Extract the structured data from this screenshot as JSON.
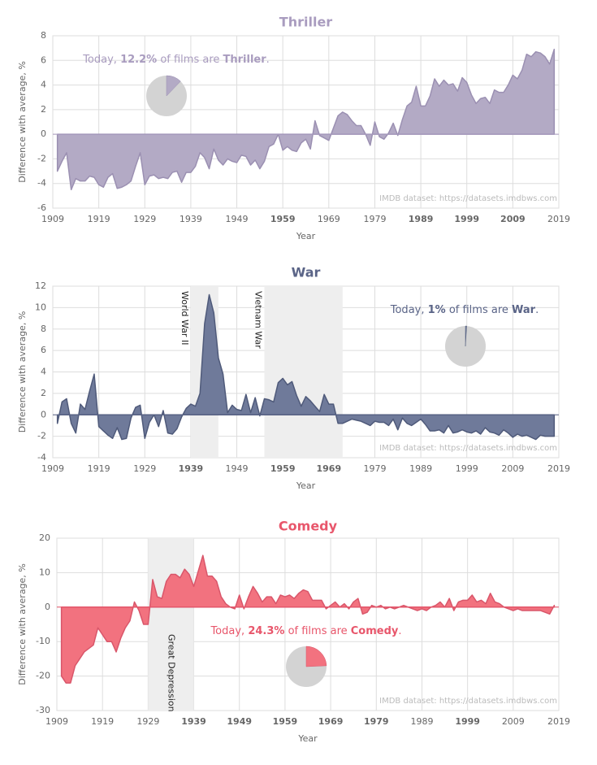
{
  "chart_data": [
    {
      "type": "area",
      "title": "Thriller",
      "color": "#b3aac5",
      "line_color": "#9b90b2",
      "title_color": "#a99cbf",
      "xlabel": "Year",
      "ylabel": "Difference with average, %",
      "source": "IMDB dataset: https://datasets.imdbws.com",
      "xlim": [
        1909,
        2019
      ],
      "xticks": [
        1909,
        1919,
        1929,
        1939,
        1949,
        1959,
        1969,
        1979,
        1989,
        1999,
        2009,
        2019
      ],
      "bold_xticks": [
        1959,
        1989,
        1999,
        2009
      ],
      "ylim": [
        -6,
        8
      ],
      "yticks": [
        -6,
        -4,
        -2,
        0,
        2,
        4,
        6,
        8
      ],
      "grid": true,
      "annotation": {
        "prefix": "Today, ",
        "share": {
          "value": 12.2,
          "label": "12.2%"
        },
        "middle": " of films are ",
        "genre": "Thriller",
        "suffix": "."
      },
      "bands": [],
      "x": [
        1910,
        1911,
        1912,
        1913,
        1914,
        1915,
        1916,
        1917,
        1918,
        1919,
        1920,
        1921,
        1922,
        1923,
        1924,
        1925,
        1926,
        1927,
        1928,
        1929,
        1930,
        1931,
        1932,
        1933,
        1934,
        1935,
        1936,
        1937,
        1938,
        1939,
        1940,
        1941,
        1942,
        1943,
        1944,
        1945,
        1946,
        1947,
        1948,
        1949,
        1950,
        1951,
        1952,
        1953,
        1954,
        1955,
        1956,
        1957,
        1958,
        1959,
        1960,
        1961,
        1962,
        1963,
        1964,
        1965,
        1966,
        1967,
        1968,
        1969,
        1970,
        1971,
        1972,
        1973,
        1974,
        1975,
        1976,
        1977,
        1978,
        1979,
        1980,
        1981,
        1982,
        1983,
        1984,
        1985,
        1986,
        1987,
        1988,
        1989,
        1990,
        1991,
        1992,
        1993,
        1994,
        1995,
        1996,
        1997,
        1998,
        1999,
        2000,
        2001,
        2002,
        2003,
        2004,
        2005,
        2006,
        2007,
        2008,
        2009,
        2010,
        2011,
        2012,
        2013,
        2014,
        2015,
        2016,
        2017,
        2018
      ],
      "values": [
        -3,
        -2.2,
        -1.5,
        -4.5,
        -3.6,
        -3.8,
        -3.8,
        -3.4,
        -3.5,
        -4.1,
        -4.3,
        -3.5,
        -3.2,
        -4.4,
        -4.3,
        -4.1,
        -3.8,
        -2.6,
        -1.5,
        -4.1,
        -3.4,
        -3.3,
        -3.6,
        -3.5,
        -3.6,
        -3.1,
        -3,
        -3.9,
        -3.1,
        -3.1,
        -2.6,
        -1.5,
        -1.9,
        -2.8,
        -1.2,
        -2.1,
        -2.5,
        -2,
        -2.2,
        -2.3,
        -1.7,
        -1.8,
        -2.5,
        -2.1,
        -2.8,
        -2.2,
        -1,
        -0.8,
        0,
        -1.3,
        -1,
        -1.3,
        -1.4,
        -0.7,
        -0.4,
        -1.2,
        1.1,
        -0.1,
        -0.3,
        -0.5,
        0.5,
        1.5,
        1.8,
        1.6,
        1.1,
        0.7,
        0.7,
        0,
        -0.9,
        1,
        -0.2,
        -0.4,
        0.1,
        0.9,
        -0.1,
        1.2,
        2.3,
        2.6,
        3.9,
        2.3,
        2.3,
        3.1,
        4.5,
        3.9,
        4.4,
        4,
        4.1,
        3.5,
        4.6,
        4.2,
        3.2,
        2.5,
        2.9,
        3,
        2.5,
        3.6,
        3.4,
        3.4,
        4,
        4.8,
        4.5,
        5.2,
        6.5,
        6.3,
        6.7,
        6.6,
        6.3,
        5.7,
        6.9
      ]
    },
    {
      "type": "area",
      "title": "War",
      "color": "#6f7a9a",
      "line_color": "#4f5a7a",
      "title_color": "#5a6487",
      "xlabel": "Year",
      "ylabel": "Difference with average, %",
      "source": "IMDB dataset: https://datasets.imdbws.com",
      "xlim": [
        1909,
        2019
      ],
      "xticks": [
        1909,
        1919,
        1929,
        1939,
        1949,
        1959,
        1969,
        1979,
        1989,
        1999,
        2009,
        2019
      ],
      "bold_xticks": [
        1939,
        1959,
        1969
      ],
      "ylim": [
        -4,
        12
      ],
      "yticks": [
        -4,
        -2,
        0,
        2,
        4,
        6,
        8,
        10,
        12
      ],
      "grid": true,
      "annotation": {
        "prefix": "Today, ",
        "share": {
          "value": 1,
          "label": "1%"
        },
        "middle": " of films are ",
        "genre": "War",
        "suffix": "."
      },
      "bands": [
        {
          "label": "World War II",
          "range": [
            1939,
            1945
          ]
        },
        {
          "label": "Vietnam War",
          "range": [
            1955,
            1972
          ]
        }
      ],
      "x": [
        1910,
        1911,
        1912,
        1913,
        1914,
        1915,
        1916,
        1917,
        1918,
        1919,
        1920,
        1921,
        1922,
        1923,
        1924,
        1925,
        1926,
        1927,
        1928,
        1929,
        1930,
        1931,
        1932,
        1933,
        1934,
        1935,
        1936,
        1937,
        1938,
        1939,
        1940,
        1941,
        1942,
        1943,
        1944,
        1945,
        1946,
        1947,
        1948,
        1949,
        1950,
        1951,
        1952,
        1953,
        1954,
        1955,
        1956,
        1957,
        1958,
        1959,
        1960,
        1961,
        1962,
        1963,
        1964,
        1965,
        1966,
        1967,
        1968,
        1969,
        1970,
        1971,
        1972,
        1973,
        1974,
        1975,
        1976,
        1977,
        1978,
        1979,
        1980,
        1981,
        1982,
        1983,
        1984,
        1985,
        1986,
        1987,
        1988,
        1989,
        1990,
        1991,
        1992,
        1993,
        1994,
        1995,
        1996,
        1997,
        1998,
        1999,
        2000,
        2001,
        2002,
        2003,
        2004,
        2005,
        2006,
        2007,
        2008,
        2009,
        2010,
        2011,
        2012,
        2013,
        2014,
        2015,
        2016,
        2017,
        2018
      ],
      "values": [
        -0.8,
        1.2,
        1.5,
        -0.8,
        -1.7,
        1,
        0.5,
        2.2,
        3.8,
        -1.1,
        -1.5,
        -1.9,
        -2.2,
        -1.2,
        -2.3,
        -2.2,
        -0.3,
        0.7,
        0.9,
        -2.2,
        -0.7,
        0,
        -1.1,
        0.4,
        -1.7,
        -1.8,
        -1.3,
        -0.2,
        0.6,
        1,
        0.8,
        2,
        8.5,
        11.2,
        9.5,
        5.3,
        3.8,
        0.2,
        0.9,
        0.5,
        0.4,
        1.9,
        0.2,
        1.6,
        -0.1,
        1.5,
        1.4,
        1.2,
        3,
        3.4,
        2.8,
        3.1,
        1.8,
        0.8,
        1.7,
        1.3,
        0.8,
        0.3,
        1.9,
        1,
        1,
        -0.8,
        -0.8,
        -0.6,
        -0.4,
        -0.5,
        -0.6,
        -0.8,
        -1,
        -0.6,
        -0.7,
        -0.7,
        -1,
        -0.4,
        -1.4,
        -0.3,
        -0.8,
        -1,
        -0.7,
        -0.4,
        -0.9,
        -1.5,
        -1.5,
        -1.4,
        -1.7,
        -1,
        -1.7,
        -1.6,
        -1.4,
        -1.6,
        -1.7,
        -1.5,
        -1.8,
        -1.2,
        -1.6,
        -1.7,
        -1.9,
        -1.4,
        -1.7,
        -2.1,
        -1.8,
        -2,
        -1.9,
        -2.1,
        -2.3,
        -1.9,
        -2,
        -2,
        -2
      ]
    },
    {
      "type": "area",
      "title": "Comedy",
      "color": "#f2727f",
      "line_color": "#d9566a",
      "title_color": "#e8566b",
      "xlabel": "Year",
      "ylabel": "Difference with average, %",
      "source": "IMDB dataset: https://datasets.imdbws.com",
      "xlim": [
        1909,
        2019
      ],
      "xticks": [
        1909,
        1919,
        1929,
        1939,
        1949,
        1959,
        1969,
        1979,
        1989,
        1999,
        2009,
        2019
      ],
      "bold_xticks": [
        1939,
        1949,
        1959,
        1969,
        1979,
        1999
      ],
      "ylim": [
        -30,
        20
      ],
      "yticks": [
        -30,
        -20,
        -10,
        0,
        10,
        20
      ],
      "grid": true,
      "annotation": {
        "prefix": "Today, ",
        "share": {
          "value": 24.3,
          "label": "24.3%"
        },
        "middle": " of films are ",
        "genre": "Comedy",
        "suffix": "."
      },
      "bands": [
        {
          "label": "Great Depression",
          "range": [
            1929,
            1939
          ]
        }
      ],
      "x": [
        1910,
        1911,
        1912,
        1913,
        1914,
        1915,
        1916,
        1917,
        1918,
        1919,
        1920,
        1921,
        1922,
        1923,
        1924,
        1925,
        1926,
        1927,
        1928,
        1929,
        1930,
        1931,
        1932,
        1933,
        1934,
        1935,
        1936,
        1937,
        1938,
        1939,
        1940,
        1941,
        1942,
        1943,
        1944,
        1945,
        1946,
        1947,
        1948,
        1949,
        1950,
        1951,
        1952,
        1953,
        1954,
        1955,
        1956,
        1957,
        1958,
        1959,
        1960,
        1961,
        1962,
        1963,
        1964,
        1965,
        1966,
        1967,
        1968,
        1969,
        1970,
        1971,
        1972,
        1973,
        1974,
        1975,
        1976,
        1977,
        1978,
        1979,
        1980,
        1981,
        1982,
        1983,
        1984,
        1985,
        1986,
        1987,
        1988,
        1989,
        1990,
        1991,
        1992,
        1993,
        1994,
        1995,
        1996,
        1997,
        1998,
        1999,
        2000,
        2001,
        2002,
        2003,
        2004,
        2005,
        2006,
        2007,
        2008,
        2009,
        2010,
        2011,
        2012,
        2013,
        2014,
        2015,
        2016,
        2017,
        2018
      ],
      "values": [
        -20,
        -22,
        -22,
        -17,
        -15,
        -13,
        -12,
        -11,
        -6,
        -8,
        -10,
        -10,
        -13,
        -9,
        -6,
        -4,
        1.5,
        -1,
        -5,
        -5,
        8,
        3,
        2.5,
        7.5,
        9.5,
        9.5,
        8.5,
        11,
        9.5,
        6,
        10.5,
        15,
        9,
        9,
        7.5,
        3,
        1,
        0,
        -0.5,
        3.5,
        -0.5,
        3,
        6,
        4,
        1.5,
        3,
        3,
        1,
        3.5,
        3,
        3.5,
        2.5,
        4,
        5,
        4.5,
        2,
        2,
        2,
        -0.5,
        0.5,
        1.5,
        0,
        1,
        -0.5,
        1.5,
        2.5,
        -2,
        -1.5,
        0.5,
        0,
        0.5,
        -0.5,
        0,
        -0.5,
        0,
        0.5,
        0,
        -0.5,
        -1,
        -0.5,
        -1,
        0,
        0.5,
        1.5,
        0,
        2.5,
        -1,
        1.5,
        2,
        2,
        3.5,
        1.5,
        2,
        1,
        4,
        1.5,
        1,
        0,
        -0.5,
        -1,
        -0.5,
        -1,
        -1,
        -1,
        -1,
        -1,
        -1.5,
        -2,
        0.5
      ]
    }
  ]
}
